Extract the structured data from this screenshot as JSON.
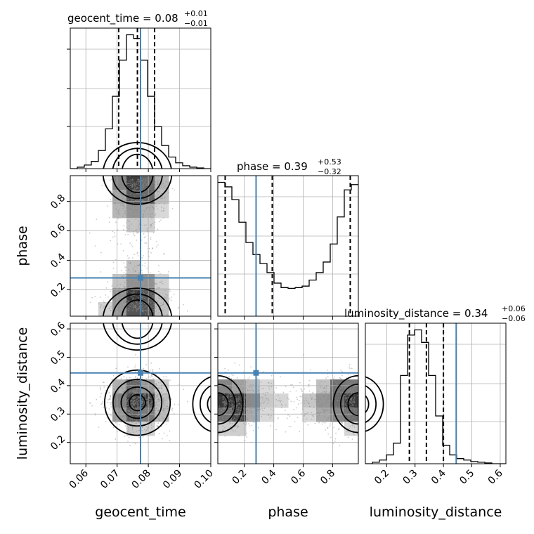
{
  "chart_data": {
    "type": "corner",
    "parameters": [
      "geocent_time",
      "phase",
      "luminosity_distance"
    ],
    "truths": {
      "geocent_time": 0.0775,
      "phase": 0.28,
      "luminosity_distance": 0.445
    },
    "ranges": {
      "geocent_time": [
        0.055,
        0.1
      ],
      "phase": [
        0.02,
        0.975
      ],
      "luminosity_distance": [
        0.125,
        0.62
      ]
    },
    "ticks": {
      "geocent_time": {
        "values": [
          0.06,
          0.07,
          0.08,
          0.09,
          0.1
        ],
        "labels": [
          "0.06",
          "0.07",
          "0.08",
          "0.09",
          "0.10"
        ]
      },
      "phase": {
        "values": [
          0.2,
          0.4,
          0.6,
          0.8
        ],
        "labels": [
          "0.2",
          "0.4",
          "0.6",
          "0.8"
        ]
      },
      "luminosity_distance": {
        "values": [
          0.2,
          0.3,
          0.4,
          0.5,
          0.6
        ],
        "labels": [
          "0.2",
          "0.3",
          "0.4",
          "0.5",
          "0.6"
        ]
      }
    },
    "titles": {
      "geocent_time": {
        "text": "geocent_time = 0.08",
        "plus": "+0.01",
        "minus": "−0.01"
      },
      "phase": {
        "text": "phase = 0.39",
        "plus": "+0.53",
        "minus": "−0.32"
      },
      "luminosity_distance": {
        "text": "luminosity_distance = 0.34",
        "plus": "+0.06",
        "minus": "−0.06"
      }
    },
    "quantiles": {
      "geocent_time": [
        0.0705,
        0.0765,
        0.082
      ],
      "phase": [
        0.07,
        0.39,
        0.92
      ],
      "luminosity_distance": [
        0.28,
        0.34,
        0.4
      ]
    },
    "histograms": {
      "geocent_time": {
        "edges_start": 0.055,
        "bin_width": 0.00225,
        "counts": [
          0,
          2,
          5,
          10,
          25,
          55,
          100,
          150,
          185,
          180,
          150,
          100,
          58,
          32,
          16,
          8,
          4,
          2,
          1,
          0
        ]
      },
      "phase": {
        "edges_start": 0.02,
        "bin_width": 0.04775,
        "counts": [
          178,
          172,
          155,
          125,
          98,
          82,
          70,
          58,
          44,
          38,
          37,
          38,
          40,
          48,
          58,
          72,
          96,
          132,
          168,
          175
        ]
      },
      "luminosity_distance": {
        "edges_start": 0.125,
        "bin_width": 0.02475,
        "counts": [
          0,
          2,
          5,
          12,
          28,
          120,
          175,
          182,
          165,
          120,
          65,
          25,
          12,
          7,
          5,
          3,
          2,
          1,
          0,
          0
        ]
      }
    },
    "axis_labels": {
      "geocent_time": "geocent_time",
      "phase": "phase",
      "luminosity_distance": "luminosity_distance"
    },
    "colors": {
      "truth": "#4682b4",
      "hist": "#000000",
      "grid": "#b0b0b0",
      "contour": "#000000"
    }
  }
}
